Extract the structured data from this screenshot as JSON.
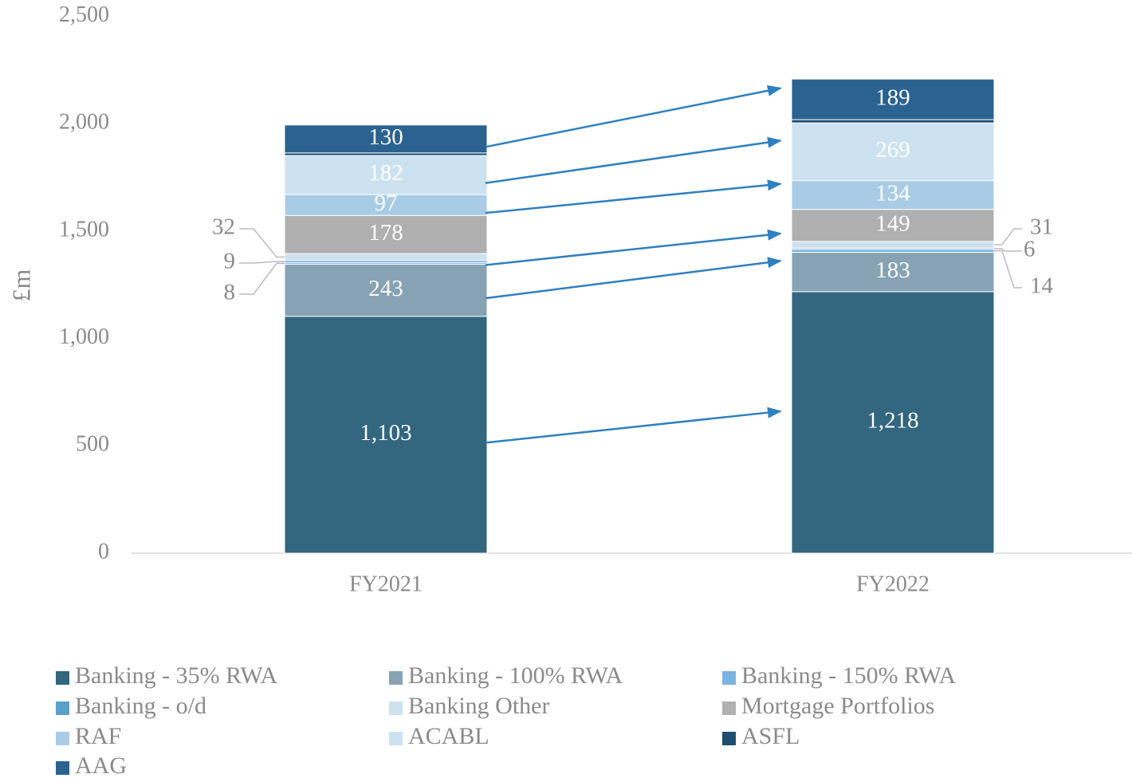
{
  "chart_data": {
    "type": "stacked_bar",
    "y_label": "£m",
    "categories": [
      "FY2021",
      "FY2022"
    ],
    "ylim": [
      0,
      2500
    ],
    "yticks": [
      0,
      500,
      {
        "value": 1000,
        "label": "1,000"
      },
      {
        "value": 1500,
        "label": "1,500"
      },
      {
        "value": 2000,
        "label": "2,000"
      },
      {
        "value": 2500,
        "label": "2,500"
      }
    ],
    "series": [
      {
        "name": "Banking - 35% RWA",
        "color": "#33667f",
        "values": [
          1103,
          1218
        ],
        "value_labels": [
          "1,103",
          "1,218"
        ]
      },
      {
        "name": "Banking - 100% RWA",
        "color": "#87a3b3",
        "values": [
          243,
          183
        ]
      },
      {
        "name": "Banking - 150% RWA",
        "color": "#7ab4e0",
        "values": [
          8,
          14
        ],
        "label_position": "outside"
      },
      {
        "name": "Banking - o/d",
        "color": "#5b9fcb",
        "values": [
          9,
          6
        ],
        "label_position": "outside"
      },
      {
        "name": "Banking Other",
        "color": "#cde1ee",
        "values": [
          32,
          31
        ],
        "label_position": "outside"
      },
      {
        "name": "Mortgage Portfolios",
        "color": "#b0b0b0",
        "values": [
          178,
          149
        ]
      },
      {
        "name": "RAF",
        "color": "#a9cce6",
        "values": [
          97,
          134
        ]
      },
      {
        "name": "ACABL",
        "color": "#cde2f0",
        "values": [
          182,
          269
        ]
      },
      {
        "name": "ASFL",
        "color": "#1f4e70",
        "values": [
          12,
          15
        ],
        "labels": false
      },
      {
        "name": "AAG",
        "color": "#2a6290",
        "values": [
          130,
          189
        ]
      }
    ]
  }
}
